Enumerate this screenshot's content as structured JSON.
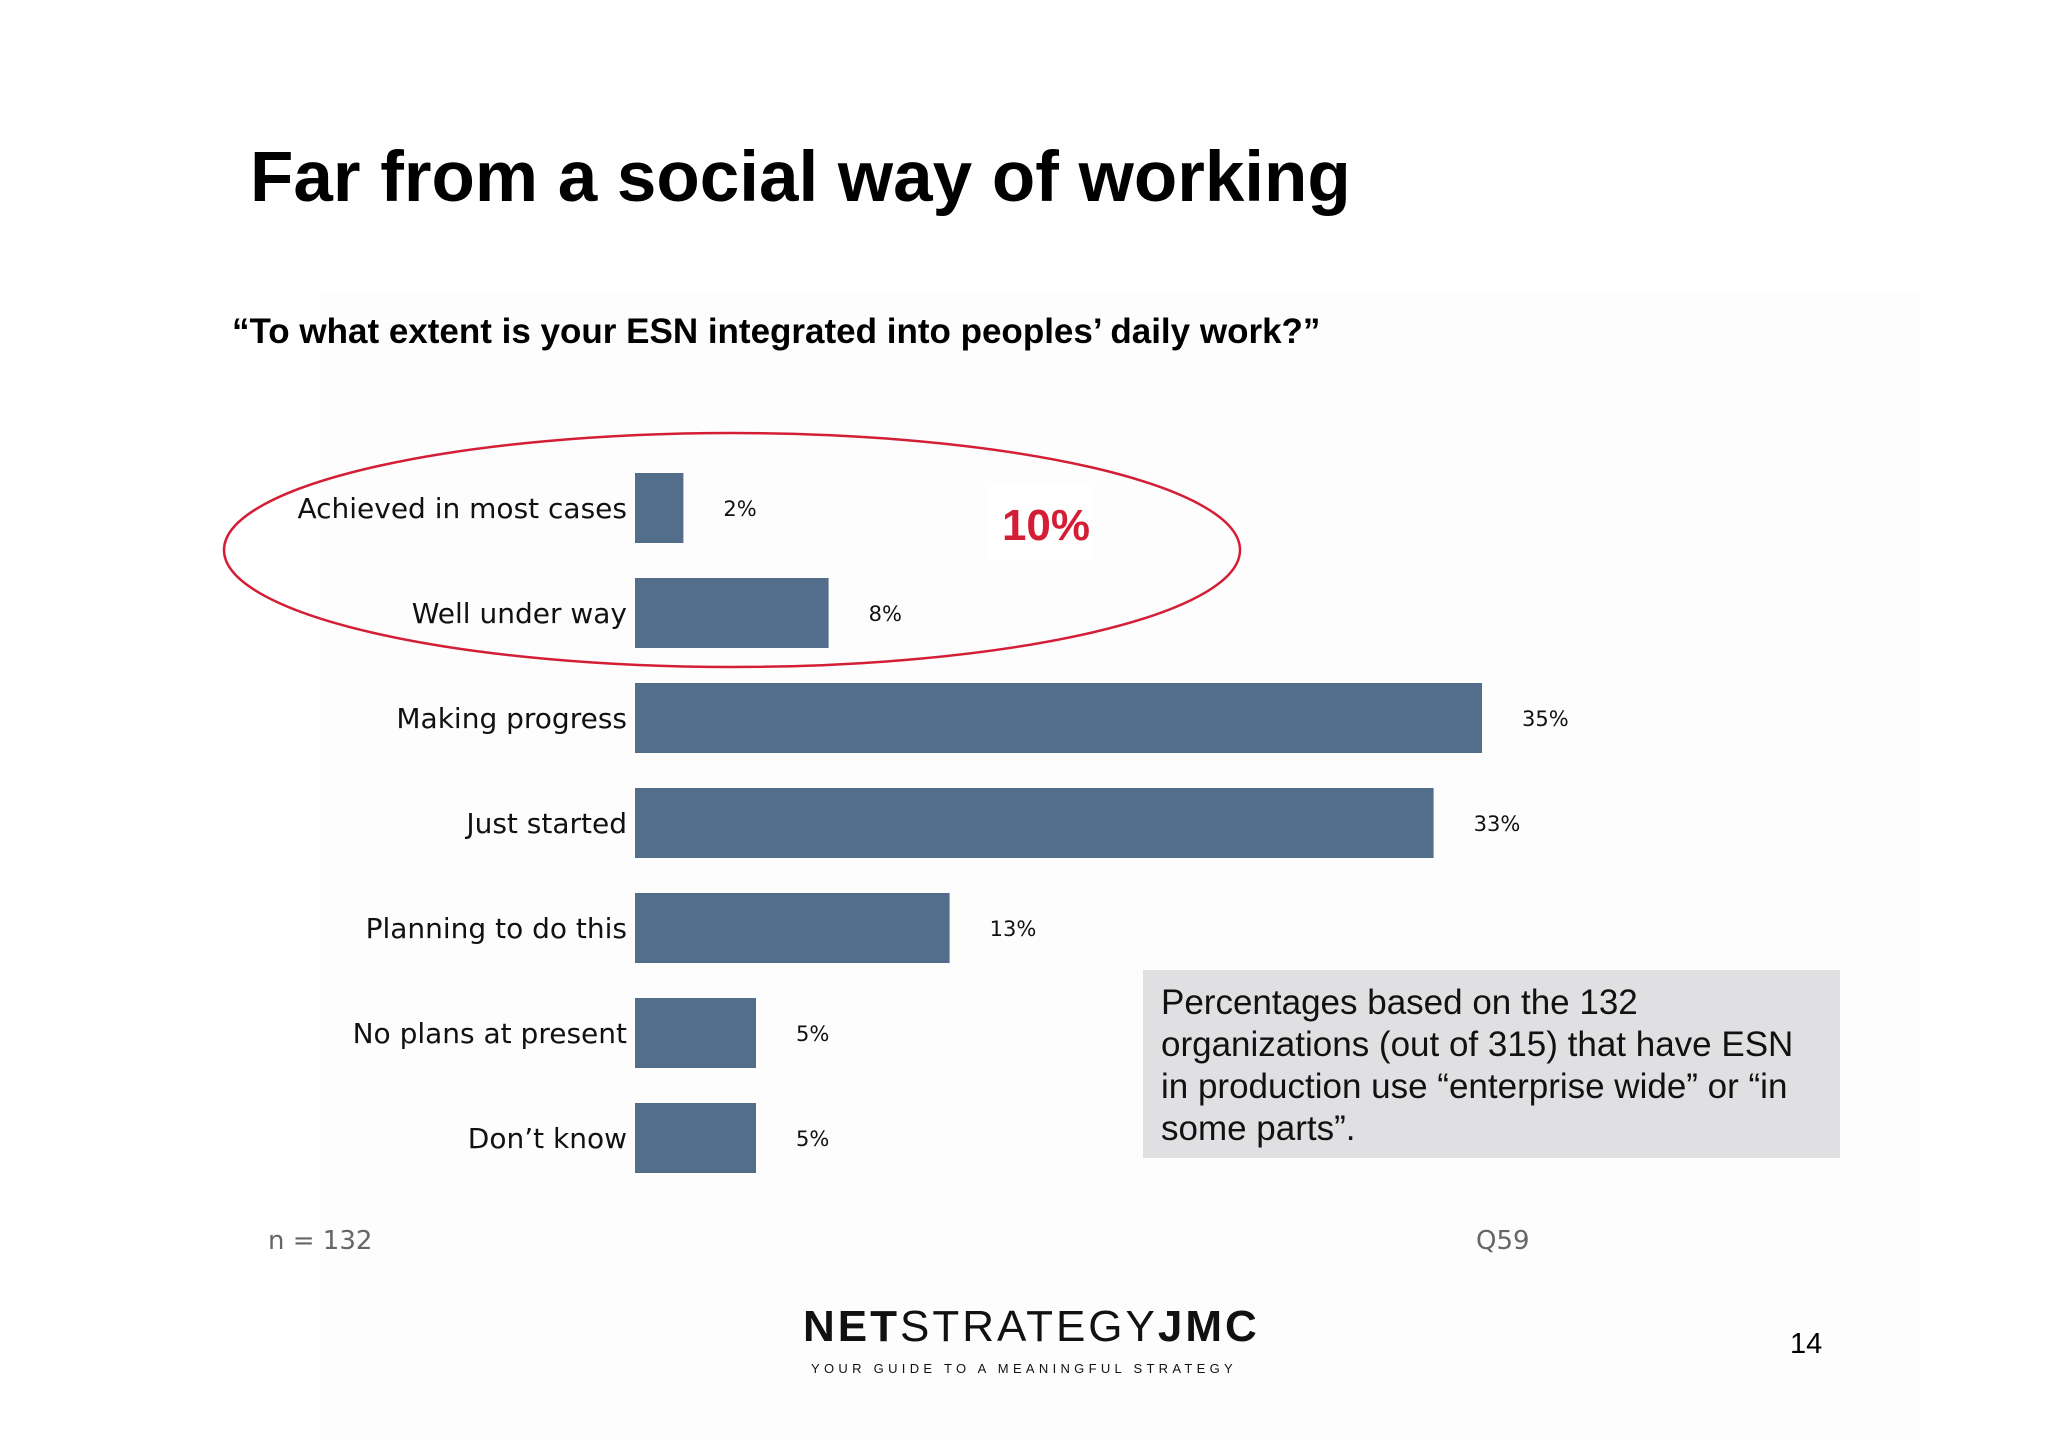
{
  "title": "Far from a social way of working",
  "subtitle": "“To what extent is your ESN integrated into peoples’ daily work?”",
  "chart_data": {
    "type": "bar",
    "orientation": "horizontal",
    "categories": [
      "Achieved in most cases",
      "Well under way",
      "Making progress",
      "Just started",
      "Planning to do this",
      "No plans at present",
      "Don’t know"
    ],
    "values": [
      2,
      8,
      35,
      33,
      13,
      5,
      5
    ],
    "value_labels": [
      "2%",
      "8%",
      "35%",
      "33%",
      "13%",
      "5%",
      "5%"
    ],
    "unit": "%",
    "bar_color": "#526e8a",
    "grid": false
  },
  "annotation": {
    "text": "10%",
    "color": "#d41e36",
    "encircled_categories": [
      "Achieved in most cases",
      "Well under way"
    ]
  },
  "note": "Percentages based on the 132 organizations (out of 315) that have ESN in production use “enterprise wide” or “in some parts”.",
  "sample_size": "n = 132",
  "question_ref": "Q59",
  "logo": {
    "part1": "NET",
    "part2": "STRATEGY",
    "part3": "JMC",
    "tagline": "YOUR GUIDE TO A MEANINGFUL STRATEGY"
  },
  "page_number": "14"
}
